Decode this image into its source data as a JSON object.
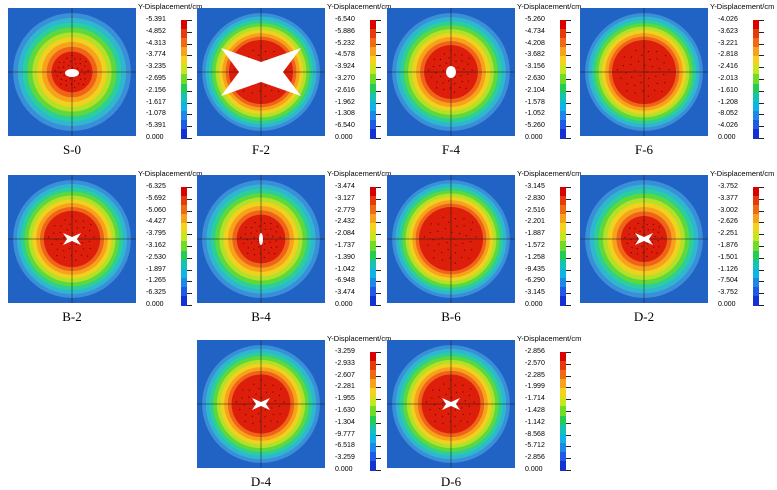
{
  "colorbar_title": "Y-Displacement/cm",
  "colors": [
    "#d90000",
    "#e63a0a",
    "#f06a14",
    "#f7a21c",
    "#f5d21c",
    "#c8e61e",
    "#6fdc28",
    "#22cc55",
    "#14c3b4",
    "#0fb4e6",
    "#1e88e8",
    "#1e5ae6",
    "#1432d2"
  ],
  "panels": [
    {
      "label": "S-0",
      "ticks": [
        "-5.391",
        "-4.852",
        "-4.313",
        "-3.774",
        "-3.235",
        "-2.695",
        "-2.156",
        "-1.617",
        "-1.078",
        "-5.391",
        "0.000"
      ],
      "core_size": 0.32,
      "hole": "oval"
    },
    {
      "label": "F-2",
      "ticks": [
        "-6.540",
        "-5.886",
        "-5.232",
        "-4.578",
        "-3.924",
        "-3.270",
        "-2.616",
        "-1.962",
        "-1.308",
        "-6.540",
        "0.000"
      ],
      "core_size": 0.5,
      "hole": "cross"
    },
    {
      "label": "F-4",
      "ticks": [
        "-5.260",
        "-4.734",
        "-4.208",
        "-3.682",
        "-3.156",
        "-2.630",
        "-2.104",
        "-1.578",
        "-1.052",
        "-5.260",
        "0.000"
      ],
      "core_size": 0.42,
      "hole": "small"
    },
    {
      "label": "F-6",
      "ticks": [
        "-4.026",
        "-3.623",
        "-3.221",
        "-2.818",
        "-2.416",
        "-2.013",
        "-1.610",
        "-1.208",
        "-8.052",
        "-4.026",
        "0.000"
      ],
      "core_size": 0.5,
      "hole": "none"
    },
    {
      "label": "B-2",
      "ticks": [
        "-6.325",
        "-5.692",
        "-5.060",
        "-4.427",
        "-3.795",
        "-3.162",
        "-2.530",
        "-1.897",
        "-1.265",
        "-6.325",
        "0.000"
      ],
      "core_size": 0.44,
      "hole": "xsmall"
    },
    {
      "label": "B-4",
      "ticks": [
        "-3.474",
        "-3.127",
        "-2.779",
        "-2.432",
        "-2.084",
        "-1.737",
        "-1.390",
        "-1.042",
        "-6.948",
        "-3.474",
        "0.000"
      ],
      "core_size": 0.38,
      "hole": "slit"
    },
    {
      "label": "B-6",
      "ticks": [
        "-3.145",
        "-2.830",
        "-2.516",
        "-2.201",
        "-1.887",
        "-1.572",
        "-1.258",
        "-9.435",
        "-6.290",
        "-3.145",
        "0.000"
      ],
      "core_size": 0.5,
      "hole": "none"
    },
    {
      "label": "D-2",
      "ticks": [
        "-3.752",
        "-3.377",
        "-3.002",
        "-2.626",
        "-2.251",
        "-1.876",
        "-1.501",
        "-1.126",
        "-7.504",
        "-3.752",
        "0.000"
      ],
      "core_size": 0.36,
      "hole": "xsmall"
    },
    {
      "label": "D-4",
      "ticks": [
        "-3.259",
        "-2.933",
        "-2.607",
        "-2.281",
        "-1.955",
        "-1.630",
        "-1.304",
        "-9.777",
        "-6.518",
        "-3.259",
        "0.000"
      ],
      "core_size": 0.46,
      "hole": "xsmall"
    },
    {
      "label": "D-6",
      "ticks": [
        "-2.856",
        "-2.570",
        "-2.285",
        "-1.999",
        "-1.714",
        "-1.428",
        "-1.142",
        "-8.568",
        "-5.712",
        "-2.856",
        "0.000"
      ],
      "core_size": 0.46,
      "hole": "xsmall"
    }
  ]
}
